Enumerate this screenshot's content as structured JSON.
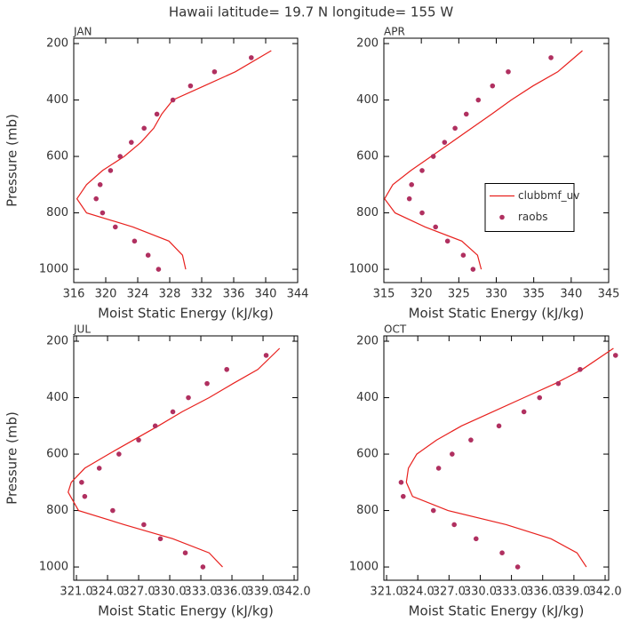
{
  "title": "Hawaii  latitude= 19.7 N longitude= 155 W",
  "chart_data": [
    {
      "type": "line",
      "title": "JAN",
      "x_label": "Moist Static Energy (kJ/kg)",
      "y_label": "Pressure (mb)",
      "xlim": [
        316,
        344
      ],
      "xticks": [
        316,
        320,
        324,
        328,
        332,
        336,
        340,
        344
      ],
      "ylim": [
        1047,
        181
      ],
      "yticks": [
        200,
        400,
        600,
        800,
        1000
      ],
      "series": [
        {
          "type": "line",
          "color": "#e8211e",
          "x": [
            340.7,
            336.2,
            332.3,
            328.4,
            327,
            326,
            324.4,
            322.3,
            319.6,
            317.6,
            316.4,
            317.6,
            323.4,
            327.9,
            329.6,
            330
          ],
          "values": [
            225,
            300,
            350,
            400,
            450,
            500,
            550,
            600,
            650,
            700,
            750,
            800,
            850,
            900,
            950,
            1000
          ]
        },
        {
          "type": "scatter",
          "color": "#b03060",
          "x": [
            338.2,
            333.6,
            330.6,
            328.4,
            326.4,
            324.8,
            323.2,
            321.8,
            320.6,
            319.3,
            318.8,
            319.6,
            321.2,
            323.6,
            325.3,
            326.6
          ],
          "values": [
            250,
            300,
            350,
            400,
            450,
            500,
            550,
            600,
            650,
            700,
            750,
            800,
            850,
            900,
            950,
            1000
          ]
        }
      ]
    },
    {
      "type": "line",
      "title": "APR",
      "x_label": "Moist Static Energy (kJ/kg)",
      "legend": "right",
      "xlim": [
        315,
        345
      ],
      "xticks": [
        315,
        320,
        325,
        330,
        335,
        340,
        345
      ],
      "ylim": [
        1047,
        181
      ],
      "yticks": [
        200,
        400,
        600,
        800,
        1000
      ],
      "series": [
        {
          "type": "line",
          "name": "clubbmf_uv",
          "color": "#e8211e",
          "x": [
            341.5,
            338.2,
            334.9,
            332,
            329.4,
            326.7,
            324,
            321.3,
            318.6,
            316.2,
            315.1,
            316.5,
            320.5,
            325.4,
            327.5,
            328
          ],
          "values": [
            225,
            300,
            350,
            400,
            450,
            500,
            550,
            600,
            650,
            700,
            750,
            800,
            850,
            900,
            950,
            1000
          ]
        },
        {
          "type": "scatter",
          "name": "raobs",
          "color": "#b03060",
          "x": [
            337.3,
            331.6,
            329.5,
            327.6,
            326,
            324.5,
            323.1,
            321.6,
            320.1,
            318.7,
            318.4,
            320.1,
            321.9,
            323.5,
            325.6,
            326.9
          ],
          "values": [
            250,
            300,
            350,
            400,
            450,
            500,
            550,
            600,
            650,
            700,
            750,
            800,
            850,
            900,
            950,
            1000
          ]
        }
      ]
    },
    {
      "type": "line",
      "title": "JUL",
      "x_label": "Moist Static Energy (kJ/kg)",
      "y_label": "Pressure (mb)",
      "xlim": [
        320.74,
        342.34
      ],
      "xticks": [
        {
          "value": 321,
          "label": "321.0"
        },
        {
          "value": 324,
          "label": "324.0"
        },
        {
          "value": 327,
          "label": "327.0"
        },
        {
          "value": 330,
          "label": "330.0"
        },
        {
          "value": 333,
          "label": "333.0"
        },
        {
          "value": 336,
          "label": "336.0"
        },
        {
          "value": 339,
          "label": "339.0"
        },
        {
          "value": 342,
          "label": "342.0"
        }
      ],
      "ylim": [
        1047,
        181
      ],
      "yticks": [
        200,
        400,
        600,
        800,
        1000
      ],
      "series": [
        {
          "type": "line",
          "color": "#e8211e",
          "x": [
            340.6,
            338.5,
            336.1,
            333.8,
            331.2,
            328.9,
            326.5,
            324.1,
            321.8,
            320.5,
            320.2,
            321.2,
            325.6,
            330.3,
            333.8,
            335.1
          ],
          "values": [
            225,
            300,
            350,
            400,
            450,
            500,
            550,
            600,
            650,
            700,
            735,
            800,
            850,
            900,
            950,
            1000
          ]
        },
        {
          "type": "scatter",
          "color": "#b03060",
          "x": [
            339.3,
            335.5,
            333.6,
            331.8,
            330.3,
            328.6,
            327,
            325.1,
            323.2,
            321.5,
            321.8,
            324.5,
            327.5,
            329.1,
            331.5,
            333.2
          ],
          "values": [
            250,
            300,
            350,
            400,
            450,
            500,
            550,
            600,
            650,
            700,
            750,
            800,
            850,
            900,
            950,
            1000
          ]
        }
      ]
    },
    {
      "type": "line",
      "title": "OCT",
      "x_label": "Moist Static Energy (kJ/kg)",
      "xlim": [
        320.74,
        342.34
      ],
      "xticks": [
        {
          "value": 321,
          "label": "321.0"
        },
        {
          "value": 324,
          "label": "324.0"
        },
        {
          "value": 327,
          "label": "327.0"
        },
        {
          "value": 330,
          "label": "330.0"
        },
        {
          "value": 333,
          "label": "333.0"
        },
        {
          "value": 336,
          "label": "336.0"
        },
        {
          "value": 339,
          "label": "339.0"
        },
        {
          "value": 342,
          "label": "342.0"
        }
      ],
      "ylim": [
        1047,
        181
      ],
      "yticks": [
        200,
        400,
        600,
        800,
        1000
      ],
      "series": [
        {
          "type": "line",
          "color": "#e8211e",
          "x": [
            342.8,
            339.8,
            337.2,
            334.2,
            331.2,
            328.2,
            325.8,
            323.9,
            323.1,
            322.9,
            323.5,
            326.9,
            332.5,
            336.8,
            339.3,
            340.2
          ],
          "values": [
            225,
            300,
            350,
            400,
            450,
            500,
            550,
            600,
            650,
            700,
            750,
            800,
            850,
            900,
            950,
            1000
          ]
        },
        {
          "type": "scatter",
          "color": "#b03060",
          "x": [
            343,
            339.6,
            337.5,
            335.7,
            334.2,
            331.8,
            329.1,
            327.3,
            326,
            322.4,
            322.6,
            325.5,
            327.5,
            329.6,
            332.1,
            333.6
          ],
          "values": [
            250,
            300,
            350,
            400,
            450,
            500,
            550,
            600,
            650,
            700,
            750,
            800,
            850,
            900,
            950,
            1000
          ]
        }
      ]
    }
  ]
}
